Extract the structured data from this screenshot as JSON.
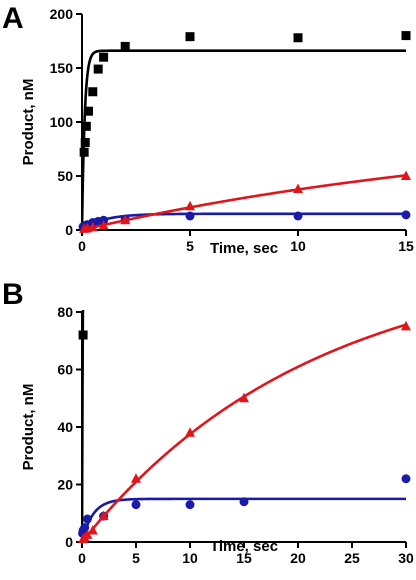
{
  "chart_data": [
    {
      "panel": "A",
      "type": "scatter",
      "xlabel": "Time, sec",
      "ylabel": "Product, nM",
      "xlim": [
        0,
        15
      ],
      "ylim": [
        0,
        200
      ],
      "xticks": [
        0,
        5,
        10,
        15
      ],
      "yticks": [
        0,
        50,
        100,
        150,
        200
      ],
      "grid": false,
      "series": [
        {
          "color": "#000000",
          "marker": "square",
          "points": [
            [
              0.1,
              72
            ],
            [
              0.15,
              81
            ],
            [
              0.2,
              96
            ],
            [
              0.3,
              110
            ],
            [
              0.5,
              128
            ],
            [
              0.75,
              149
            ],
            [
              1.0,
              160
            ],
            [
              2.0,
              170
            ],
            [
              5.0,
              179
            ],
            [
              10.0,
              178
            ],
            [
              15.0,
              180
            ]
          ],
          "fit": {
            "form": "A*(1-exp(-k*t))",
            "A": 166,
            "k": 8
          }
        },
        {
          "color": "#1a1aa8",
          "marker": "circle",
          "points": [
            [
              0.05,
              3
            ],
            [
              0.1,
              4
            ],
            [
              0.25,
              5
            ],
            [
              0.5,
              7
            ],
            [
              0.75,
              8
            ],
            [
              1.0,
              9
            ],
            [
              2.0,
              10
            ],
            [
              5.0,
              13
            ],
            [
              10.0,
              13
            ],
            [
              15.0,
              14
            ]
          ],
          "fit": {
            "form": "A*(1-exp(-k*t))",
            "A": 15,
            "k": 1.0
          }
        },
        {
          "color": "#e0161b",
          "marker": "triangle",
          "points": [
            [
              0.1,
              1
            ],
            [
              0.25,
              1.5
            ],
            [
              0.5,
              2.5
            ],
            [
              1.0,
              4
            ],
            [
              2.0,
              9
            ],
            [
              5.0,
              22
            ],
            [
              10.0,
              38
            ],
            [
              15.0,
              50
            ]
          ],
          "fit": {
            "form": "A*(1-exp(-k*t))",
            "A": 100,
            "k": 0.047
          }
        }
      ]
    },
    {
      "panel": "B",
      "type": "scatter",
      "xlabel": "Time, sec",
      "ylabel": "Product, nM",
      "xlim": [
        0,
        30
      ],
      "ylim": [
        0,
        80
      ],
      "xticks": [
        0,
        5,
        10,
        15,
        20,
        25,
        30
      ],
      "yticks": [
        0,
        20,
        40,
        60,
        80
      ],
      "grid": false,
      "series": [
        {
          "color": "#000000",
          "marker": "square",
          "points": [
            [
              0.1,
              72
            ]
          ],
          "fit": {
            "form": "A*(1-exp(-k*t))",
            "A": 166,
            "k": 8
          }
        },
        {
          "color": "#1a1aa8",
          "marker": "circle",
          "points": [
            [
              0.05,
              3
            ],
            [
              0.1,
              4
            ],
            [
              0.25,
              5
            ],
            [
              0.5,
              8
            ],
            [
              2.0,
              9
            ],
            [
              5.0,
              13
            ],
            [
              10.0,
              13
            ],
            [
              15.0,
              14
            ],
            [
              30.0,
              22
            ]
          ],
          "fit": {
            "form": "A*(1-exp(-k*t))",
            "A": 15,
            "k": 1.0
          }
        },
        {
          "color": "#e0161b",
          "marker": "triangle",
          "points": [
            [
              0.1,
              1
            ],
            [
              0.25,
              1.5
            ],
            [
              0.5,
              2.5
            ],
            [
              1.0,
              4
            ],
            [
              2.0,
              9
            ],
            [
              5.0,
              22
            ],
            [
              10.0,
              38
            ],
            [
              15.0,
              50
            ],
            [
              30.0,
              75
            ]
          ],
          "fit": {
            "form": "A*(1-exp(-k*t))",
            "A": 100,
            "k": 0.047
          }
        }
      ]
    }
  ]
}
